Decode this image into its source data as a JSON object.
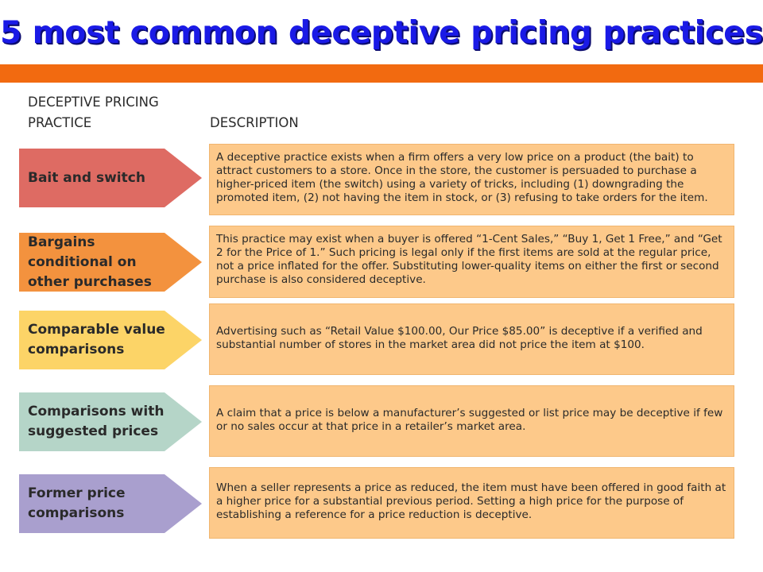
{
  "title": "5 most common deceptive pricing practices",
  "headers": {
    "practice": "DECEPTIVE PRICING PRACTICE",
    "description": "DESCRIPTION"
  },
  "rows": [
    {
      "practice": "Bait and switch",
      "color": "#de6b63",
      "description": "A deceptive practice exists when a firm offers a very low price on a product (the bait) to attract customers to a store.  Once in the store, the customer is persuaded to purchase a higher-priced item (the switch) using a variety of tricks, including (1) downgrading the promoted item, (2) not having the item in stock, or (3) refusing to take orders for the item."
    },
    {
      "practice": "Bargains conditional on other purchases",
      "color": "#f3923e",
      "description": "This practice may exist when a buyer is offered “1-Cent Sales,” “Buy 1, Get 1 Free,” and “Get 2 for the Price of 1.”  Such pricing is legal only if the first items are sold at the regular price, not a price inflated for the offer.  Substituting lower-quality items on either the first or second purchase is also considered deceptive."
    },
    {
      "practice": "Comparable value comparisons",
      "color": "#fcd467",
      "description": "Advertising such as “Retail Value $100.00, Our Price $85.00” is deceptive if a verified and substantial number of stores in the market area did not price the item at $100."
    },
    {
      "practice": "Comparisons with suggested prices",
      "color": "#b5d5c8",
      "description": "A claim that a price is below a manufacturer’s suggested or list price may be deceptive if few or no sales occur at that price in a retailer’s market area."
    },
    {
      "practice": "Former price comparisons",
      "color": "#a99fce",
      "description": "When a seller represents a price as reduced, the item must have been offered in good faith at a higher price for a substantial previous period.  Setting a high price for the purpose of establishing a reference for a price reduction is deceptive."
    }
  ]
}
